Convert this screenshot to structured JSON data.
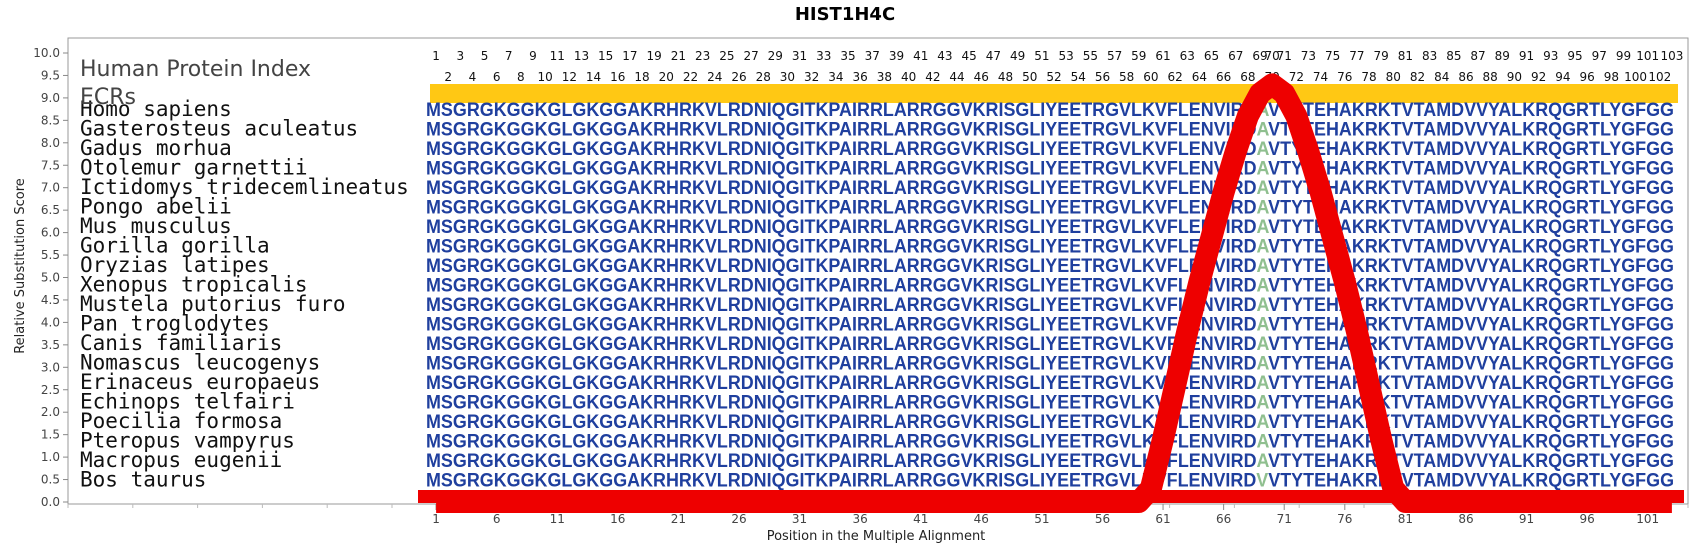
{
  "colors": {
    "sequence": "#1f3f9e",
    "variant": "#8fbf8f",
    "ecr_bar": "#ffc814",
    "score_curve": "#ee0000",
    "frame": "#999999"
  },
  "chart_data": {
    "type": "area",
    "title": "HIST1H4C",
    "xlabel": "Position in the Multiple Alignment",
    "ylabel": "Relative Substitution Score",
    "xlim": [
      1,
      103
    ],
    "ylim": [
      0.0,
      10.0
    ],
    "yticks": [
      "0.0",
      "0.5",
      "1.0",
      "1.5",
      "2.0",
      "2.5",
      "3.0",
      "3.5",
      "4.0",
      "4.5",
      "5.0",
      "5.5",
      "6.0",
      "6.5",
      "7.0",
      "7.5",
      "8.0",
      "8.5",
      "9.0",
      "9.5",
      "10.0"
    ],
    "xticks": [
      "1",
      "6",
      "11",
      "16",
      "21",
      "26",
      "31",
      "36",
      "41",
      "46",
      "51",
      "56",
      "61",
      "66",
      "71",
      "76",
      "81",
      "86",
      "91",
      "96",
      "101"
    ],
    "position_labels_odd": [
      "1",
      "3",
      "5",
      "7",
      "9",
      "11",
      "13",
      "15",
      "17",
      "19",
      "21",
      "23",
      "25",
      "27",
      "29",
      "31",
      "33",
      "35",
      "37",
      "39",
      "41",
      "43",
      "45",
      "47",
      "49",
      "51",
      "53",
      "55",
      "57",
      "59",
      "61",
      "63",
      "65",
      "67",
      "69",
      "70",
      "71",
      "73",
      "75",
      "77",
      "79",
      "81",
      "83",
      "85",
      "87",
      "89",
      "91",
      "93",
      "95",
      "97",
      "99",
      "101",
      "103"
    ],
    "position_labels_even": [
      "2",
      "4",
      "6",
      "8",
      "10",
      "12",
      "14",
      "16",
      "18",
      "20",
      "22",
      "24",
      "26",
      "28",
      "30",
      "32",
      "34",
      "36",
      "38",
      "40",
      "42",
      "44",
      "46",
      "48",
      "50",
      "52",
      "54",
      "56",
      "58",
      "60",
      "62",
      "64",
      "66",
      "68",
      "70",
      "72",
      "74",
      "76",
      "78",
      "80",
      "82",
      "84",
      "86",
      "88",
      "90",
      "92",
      "94",
      "96",
      "98",
      "100",
      "102"
    ],
    "header_label": "Human Protein Index",
    "ecr_label": "ECRs",
    "ecr_ranges": [
      [
        1,
        103
      ]
    ],
    "series": [
      {
        "x": [
          1,
          59,
          60,
          61,
          62,
          63,
          64,
          65,
          66,
          67,
          68,
          69,
          70,
          71,
          72,
          73,
          74,
          75,
          76,
          77,
          78,
          79,
          80,
          81,
          103
        ],
        "values": [
          0.0,
          0.0,
          0.3,
          1.4,
          2.6,
          3.8,
          4.9,
          5.9,
          6.9,
          7.8,
          8.6,
          9.1,
          9.3,
          9.1,
          8.6,
          7.8,
          6.9,
          5.9,
          4.9,
          3.8,
          2.6,
          1.4,
          0.3,
          0.0,
          0.0
        ]
      }
    ],
    "variant_position": 70,
    "sequence_columns": [
      "M",
      "S",
      "G",
      "R",
      "G",
      "K",
      "G",
      "G",
      "K",
      "G",
      "L",
      "G",
      "K",
      "G",
      "G",
      "A",
      "K",
      "R",
      "H",
      "R",
      "K",
      "V",
      "L",
      "R",
      "D",
      "N",
      "I",
      "Q",
      "G",
      "I",
      "T",
      "K",
      "P",
      "A",
      "I",
      "R",
      "R",
      "L",
      "A",
      "R",
      "R",
      "G",
      "G",
      "V",
      "K",
      "R",
      "I",
      "S",
      "G",
      "L",
      "I",
      "Y",
      "E",
      "E",
      "T",
      "R",
      "G",
      "V",
      "L",
      "K",
      "V",
      "F",
      "L",
      "E",
      "N",
      "V",
      "I",
      "R",
      "D",
      "A",
      "V",
      "T",
      "Y",
      "T",
      "E",
      "H",
      "A",
      "K",
      "R",
      "K",
      "T",
      "V",
      "T",
      "A",
      "M",
      "D",
      "V",
      "V",
      "Y",
      "A",
      "L",
      "K",
      "R",
      "Q",
      "G",
      "R",
      "T",
      "L",
      "Y",
      "G",
      "F",
      "G",
      "G"
    ],
    "rows": [
      {
        "species": "Homo sapiens",
        "sequence": "MSGRGKGGKGLGKGGAKRHRKVLRDNIQGITKPAIRRLARRGGVKRISGLIYEETRGVLKVFLENVIRDAVTYTEHAKRKTVTAMDVVYALKRQGRTLYGFGG"
      },
      {
        "species": "Gasterosteus aculeatus",
        "sequence": "MSGRGKGGKGLGKGGAKRHRKVLRDNIQGITKPAIRRLARRGGVKRISGLIYEETRGVLKVFLENVIRDAVTYTEHAKRKTVTAMDVVYALKRQGRTLYGFGG"
      },
      {
        "species": "Gadus morhua",
        "sequence": "MSGRGKGGKGLGKGGAKRHRKVLRDNIQGITKPAIRRLARRGGVKRISGLIYEETRGVLKVFLENVIRDAVTYTEHAKRKTVTAMDVVYALKRQGRTLYGFGG"
      },
      {
        "species": "Otolemur garnettii",
        "sequence": "MSGRGKGGKGLGKGGAKRHRKVLRDNIQGITKPAIRRLARRGGVKRISGLIYEETRGVLKVFLENVIRDAVTYTEHAKRKTVTAMDVVYALKRQGRTLYGFGG"
      },
      {
        "species": "Ictidomys tridecemlineatus",
        "sequence": "MSGRGKGGKGLGKGGAKRHRKVLRDNIQGITKPAIRRLARRGGVKRISGLIYEETRGVLKVFLENVIRDAVTYTEHAKRKTVTAMDVVYALKRQGRTLYGFGG"
      },
      {
        "species": "Pongo abelii",
        "sequence": "MSGRGKGGKGLGKGGAKRHRKVLRDNIQGITKPAIRRLARRGGVKRISGLIYEETRGVLKVFLENVIRDAVTYTEHAKRKTVTAMDVVYALKRQGRTLYGFGG"
      },
      {
        "species": "Mus musculus",
        "sequence": "MSGRGKGGKGLGKGGAKRHRKVLRDNIQGITKPAIRRLARRGGVKRISGLIYEETRGVLKVFLENVIRDAVTYTEHAKRKTVTAMDVVYALKRQGRTLYGFGG"
      },
      {
        "species": "Gorilla gorilla",
        "sequence": "MSGRGKGGKGLGKGGAKRHRKVLRDNIQGITKPAIRRLARRGGVKRISGLIYEETRGVLKVFLENVIRDAVTYTEHAKRKTVTAMDVVYALKRQGRTLYGFGG"
      },
      {
        "species": "Oryzias latipes",
        "sequence": "MSGRGKGGKGLGKGGAKRHRKVLRDNIQGITKPAIRRLARRGGVKRISGLIYEETRGVLKVFLENVIRDAVTYTEHAKRKTVTAMDVVYALKRQGRTLYGFGG"
      },
      {
        "species": "Xenopus tropicalis",
        "sequence": "MSGRGKGGKGLGKGGAKRHRKVLRDNIQGITKPAIRRLARRGGVKRISGLIYEETRGVLKVFLENVIRDAVTYTEHAKRKTVTAMDVVYALKRQGRTLYGFGG"
      },
      {
        "species": "Mustela putorius furo",
        "sequence": "MSGRGKGGKGLGKGGAKRHRKVLRDNIQGITKPAIRRLARRGGVKRISGLIYEETRGVLKVFLENVIRDAVTYTEHAKRKTVTAMDVVYALKRQGRTLYGFGG"
      },
      {
        "species": "Pan troglodytes",
        "sequence": "MSGRGKGGKGLGKGGAKRHRKVLRDNIQGITKPAIRRLARRGGVKRISGLIYEETRGVLKVFLENVIRDAVTYTEHAKRKTVTAMDVVYALKRQGRTLYGFGG"
      },
      {
        "species": "Canis familiaris",
        "sequence": "MSGRGKGGKGLGKGGAKRHRKVLRDNIQGITKPAIRRLARRGGVKRISGLIYEETRGVLKVFLENVIRDAVTYTEHAKRKTVTAMDVVYALKRQGRTLYGFGG"
      },
      {
        "species": "Nomascus leucogenys",
        "sequence": "MSGRGKGGKGLGKGGAKRHRKVLRDNIQGITKPAIRRLARRGGVKRISGLIYEETRGVLKVFLENVIRDAVTYTEHAKRKTVTAMDVVYALKRQGRTLYGFGG"
      },
      {
        "species": "Erinaceus europaeus",
        "sequence": "MSGRGKGGKGLGKGGAKRHRKVLRDNIQGITKPAIRRLARRGGVKRISGLIYEETRGVLKVFLENVIRDAVTYTEHAKRKTVTAMDVVYALKRQGRTLYGFGG"
      },
      {
        "species": "Echinops telfairi",
        "sequence": "MSGRGKGGKGLGKGGAKRHRKVLRDNIQGITKPAIRRLARRGGVKRISGLIYEETRGVLKVFLENVIRDAVTYTEHAKRKTVTAMDVVYALKRQGRTLYGFGG"
      },
      {
        "species": "Poecilia formosa",
        "sequence": "MSGRGKGGKGLGKGGAKRHRKVLRDNIQGITKPAIRRLARRGGVKRISGLIYEETRGVLKVFLENVIRDAVTYTEHAKRKTVTAMDVVYALKRQGRTLYGFGG"
      },
      {
        "species": "Pteropus vampyrus",
        "sequence": "MSGRGKGGKGLGKGGAKRHRKVLRDNIQGITKPAIRRLARRGGVKRISGLIYEETRGVLKVFLENVIRDAVTYTEHAKRKTVTAMDVVYALKRQGRTLYGFGG"
      },
      {
        "species": "Macropus eugenii",
        "sequence": "MSGRGKGGKGLGKGGAKRHRKVLRDNIQGITKPAIRRLARRGGVKRISGLIYEETRGVLKVFLENVIRDAVTYTEHAKRKTVTAMDVVYALKRQGRTLYGFGG"
      },
      {
        "species": "Bos taurus",
        "sequence": "MSGRGKGGKGLGKGGAKRHRKVLRDNIQGITKPAIRRLARRGGVKRISGLIYEETRGVLKVFLENVIRDVVTYTEHAKRKTVTAMDVVYALKRQGRTLYGFGG"
      }
    ],
    "grid": false,
    "legend": "none"
  }
}
